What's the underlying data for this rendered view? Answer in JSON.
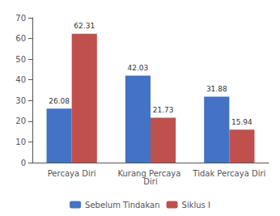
{
  "chart_data": {
    "type": "bar",
    "categories": [
      "Percaya Diri",
      "Kurang Percaya Diri",
      "Tidak Percaya Diri"
    ],
    "series": [
      {
        "name": "Sebelum Tindakan",
        "color": "#4472C4",
        "values": [
          26.08,
          42.03,
          31.88
        ]
      },
      {
        "name": "Siklus I",
        "color": "#C0504D",
        "values": [
          62.31,
          21.73,
          15.94
        ]
      }
    ],
    "ylim": [
      0,
      70
    ],
    "yticks": [
      0,
      10,
      20,
      30,
      40,
      50,
      60,
      70
    ],
    "grid": false,
    "legend": "bottom",
    "data_labels": true
  }
}
